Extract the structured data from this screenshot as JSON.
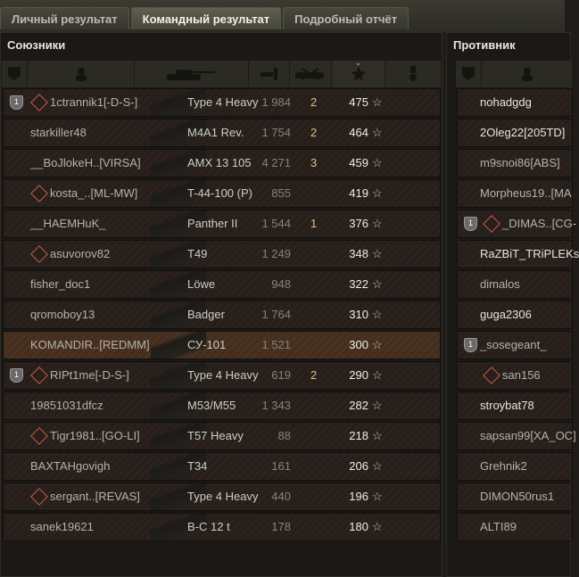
{
  "tabs": [
    {
      "label": "Личный результат",
      "active": false
    },
    {
      "label": "Командный результат",
      "active": true
    },
    {
      "label": "Подробный отчёт",
      "active": false
    }
  ],
  "allies": {
    "title": "Союзники",
    "columns": [
      "squad-icon",
      "player-icon",
      "tank-icon",
      "damage-icon",
      "frags-icon",
      "xp-icon",
      "medal-icon"
    ],
    "sort_column": "xp",
    "rows": [
      {
        "squad": "1",
        "badge": true,
        "name": "1ctrannik1[-D-S-]",
        "vehicle": "Type 4 Heavy",
        "damage": "1 984",
        "frags": "2",
        "xp": "475"
      },
      {
        "name": "starkiller48",
        "vehicle": "M4A1 Rev.",
        "damage": "1 754",
        "frags": "2",
        "xp": "464"
      },
      {
        "name": "__BoJlokeH..[VIRSA]",
        "vehicle": "AMX 13 105",
        "damage": "4 271",
        "frags": "3",
        "xp": "459"
      },
      {
        "badge": true,
        "name": "kosta_..[ML-MW]",
        "vehicle": "T-44-100 (P)",
        "damage": "855",
        "frags": "",
        "xp": "419"
      },
      {
        "name": "__HAEMHuK_",
        "vehicle": "Panther II",
        "damage": "1 544",
        "frags": "1",
        "xp": "376"
      },
      {
        "badge": true,
        "name": "asuvorov82",
        "vehicle": "T49",
        "damage": "1 249",
        "frags": "",
        "xp": "348"
      },
      {
        "name": "fisher_doc1",
        "vehicle": "Löwe",
        "damage": "948",
        "frags": "",
        "xp": "322"
      },
      {
        "name": "qromoboy13",
        "vehicle": "Badger",
        "damage": "1 764",
        "frags": "",
        "xp": "310"
      },
      {
        "me": true,
        "name": "KOMANDIR..[REDMM]",
        "vehicle": "СУ-101",
        "damage": "1 521",
        "frags": "",
        "xp": "300"
      },
      {
        "squad": "1",
        "badge": true,
        "name": "RIPt1me[-D-S-]",
        "vehicle": "Type 4 Heavy",
        "damage": "619",
        "frags": "2",
        "xp": "290"
      },
      {
        "name": "19851031dfcz",
        "vehicle": "M53/M55",
        "damage": "1 343",
        "frags": "",
        "xp": "282"
      },
      {
        "badge": true,
        "name": "Tigr1981..[GO-LI]",
        "vehicle": "T57 Heavy",
        "damage": "88",
        "frags": "",
        "xp": "218"
      },
      {
        "name": "BAXTAHgovigh",
        "vehicle": "T34",
        "damage": "161",
        "frags": "",
        "xp": "206"
      },
      {
        "badge": true,
        "name": "sergant..[REVAS]",
        "vehicle": "Type 4 Heavy",
        "damage": "440",
        "frags": "",
        "xp": "196"
      },
      {
        "name": "sanek19621",
        "vehicle": "B-C 12 t",
        "damage": "178",
        "frags": "",
        "xp": "180"
      }
    ]
  },
  "enemies": {
    "title": "Противник",
    "rows": [
      {
        "name": "nohadgdg",
        "alive": true
      },
      {
        "name": "2Oleg22[205TD]",
        "alive": true
      },
      {
        "name": "m9snoi86[ABS]"
      },
      {
        "name": "Morpheus19..[MA"
      },
      {
        "squad": "1",
        "badge": true,
        "name": "_DIMAS..[CG-"
      },
      {
        "name": "RaZBiT_TRiPLEKs",
        "alive": true
      },
      {
        "name": "dimalos"
      },
      {
        "name": "guga2306",
        "alive": true
      },
      {
        "squad": "1",
        "name": "_sosegeant_"
      },
      {
        "badge": true,
        "name": "san156"
      },
      {
        "name": "stroybat78",
        "alive": true
      },
      {
        "name": "sapsan99[XA_OC]"
      },
      {
        "name": "Grehnik2"
      },
      {
        "name": "DIMON50rus1"
      },
      {
        "name": "ALTI89"
      }
    ]
  }
}
